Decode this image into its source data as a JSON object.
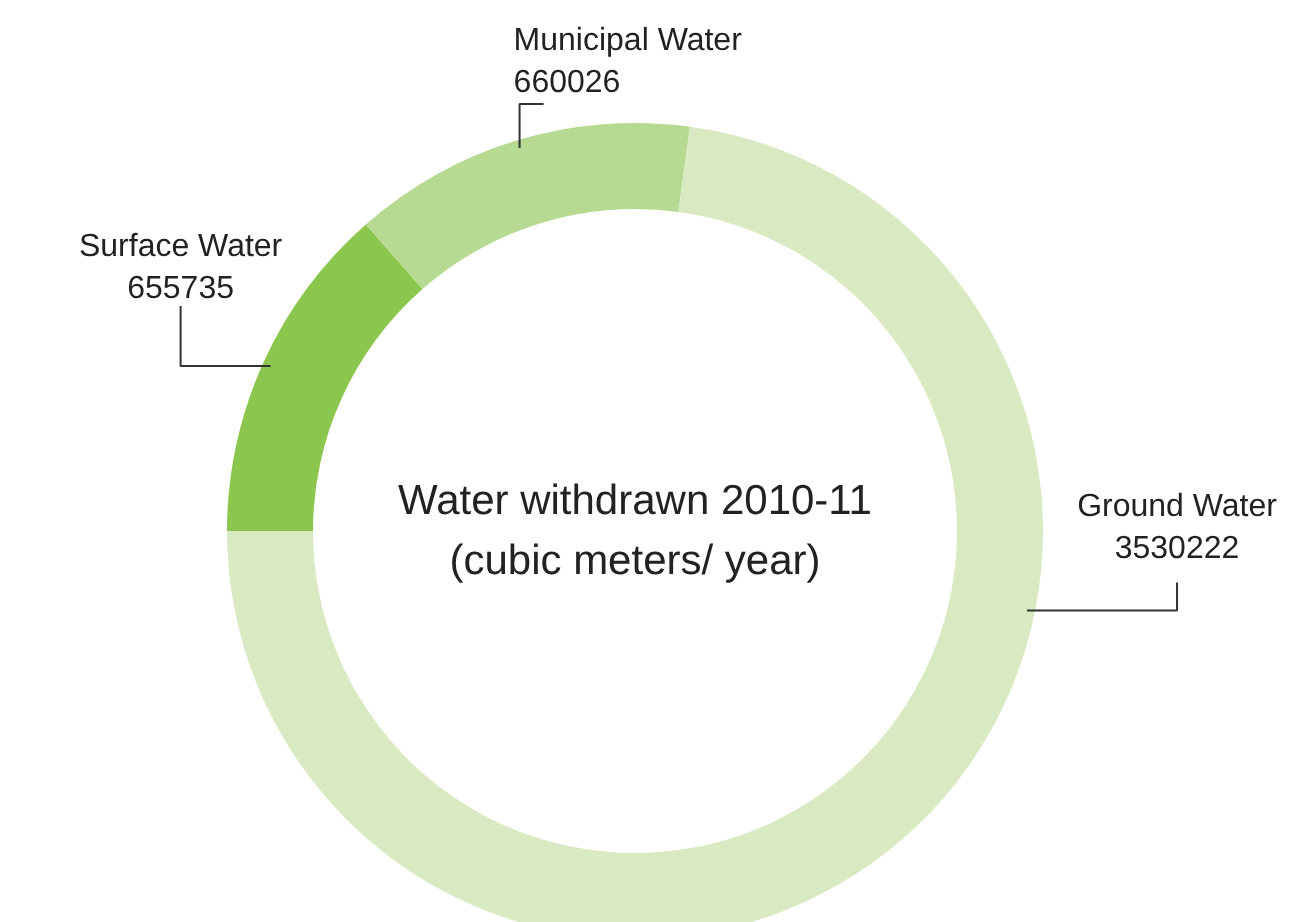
{
  "chart_data": {
    "type": "donut",
    "title": "Water withdrawn 2010-11\n(cubic meters/ year)",
    "categories": [
      "Surface Water",
      "Municipal Water",
      "Ground Water"
    ],
    "values": [
      655735,
      660026,
      3530222
    ],
    "colors": [
      "#8bc64e",
      "#b6da92",
      "#d9eac3"
    ],
    "data_labels": true
  }
}
